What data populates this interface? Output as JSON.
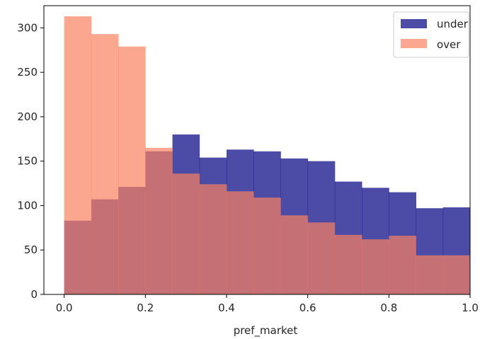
{
  "chart_data": {
    "type": "bar",
    "subtype": "histogram-overlay",
    "xlabel": "pref_market",
    "ylabel": "",
    "xlim": [
      -0.05,
      1.0
    ],
    "ylim": [
      0,
      325
    ],
    "xticks": [
      0.0,
      0.2,
      0.4,
      0.6,
      0.8,
      1.0
    ],
    "xtick_labels": [
      "0.0",
      "0.2",
      "0.4",
      "0.6",
      "0.8",
      "1.0"
    ],
    "yticks": [
      0,
      50,
      100,
      150,
      200,
      250,
      300
    ],
    "ytick_labels": [
      "0",
      "50",
      "100",
      "150",
      "200",
      "250",
      "300"
    ],
    "bin_edges": [
      0.0,
      0.0667,
      0.1333,
      0.2,
      0.2667,
      0.3333,
      0.4,
      0.4667,
      0.5333,
      0.6,
      0.6667,
      0.7333,
      0.8,
      0.8667,
      0.9333,
      1.0
    ],
    "series": [
      {
        "name": "under",
        "color": "#000080",
        "opacity": 0.7,
        "values": [
          83,
          107,
          121,
          161,
          180,
          154,
          163,
          161,
          153,
          150,
          127,
          120,
          115,
          97,
          98
        ]
      },
      {
        "name": "over",
        "color": "#fa8060",
        "opacity": 0.7,
        "values": [
          313,
          293,
          279,
          165,
          136,
          124,
          116,
          109,
          89,
          81,
          67,
          62,
          66,
          44,
          44
        ]
      }
    ],
    "legend_position": "top-right",
    "grid": false
  }
}
